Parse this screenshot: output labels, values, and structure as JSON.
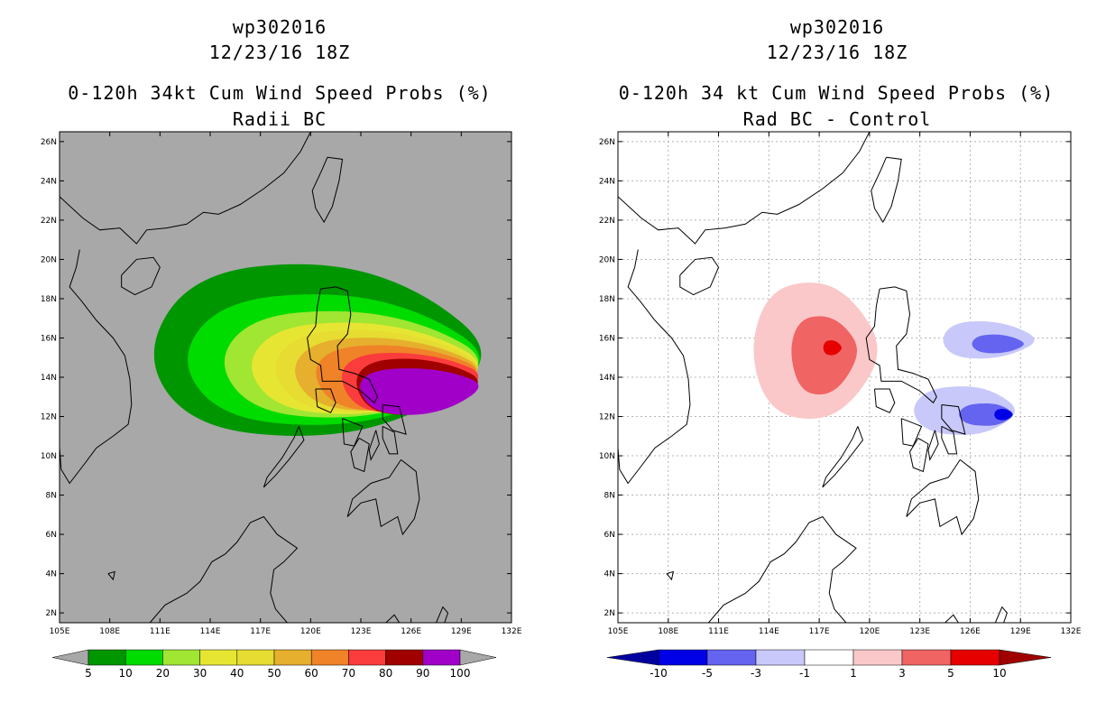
{
  "chart_data": [
    {
      "type": "heatmap",
      "storm_id": "wp302016",
      "date": "12/23/16 18Z",
      "title": "0-120h 34kt Cum Wind Speed Probs (%)",
      "subtitle": "Radii BC",
      "background_color": "#a8a8a8",
      "x_ticks": [
        "105E",
        "108E",
        "111E",
        "114E",
        "117E",
        "120E",
        "123E",
        "126E",
        "129E",
        "132E"
      ],
      "y_ticks": [
        "2N",
        "4N",
        "6N",
        "8N",
        "10N",
        "12N",
        "14N",
        "16N",
        "18N",
        "20N",
        "22N",
        "24N",
        "26N"
      ],
      "xlim": [
        105,
        132
      ],
      "ylim": [
        1.5,
        26.5
      ],
      "legend_levels": [
        "5",
        "10",
        "20",
        "30",
        "40",
        "50",
        "60",
        "70",
        "80",
        "90",
        "100"
      ],
      "legend_colors": [
        "#009600",
        "#00dc00",
        "#a0e632",
        "#e6e632",
        "#e6dc32",
        "#e6af2d",
        "#f08228",
        "#fa3c3c",
        "#a00000",
        "#a000c8"
      ],
      "contours": [
        {
          "level": 5,
          "color": "#009600",
          "center_lon": 120.6,
          "center_lat": 15.1,
          "lon_west": 109.9,
          "lon_east": 131.4,
          "lat_south": 10.8,
          "lat_north": 20.0
        },
        {
          "level": 10,
          "color": "#00dc00",
          "center_lon": 121.4,
          "center_lat": 14.9,
          "lon_west": 112.0,
          "lon_east": 131.2,
          "lat_south": 11.4,
          "lat_north": 18.4
        },
        {
          "level": 20,
          "color": "#a0e632",
          "center_lon": 122.2,
          "center_lat": 14.8,
          "lon_west": 114.3,
          "lon_east": 131.0,
          "lat_south": 11.8,
          "lat_north": 17.5
        },
        {
          "level": 30,
          "color": "#e6e632",
          "center_lon": 122.9,
          "center_lat": 14.6,
          "lon_west": 116.0,
          "lon_east": 130.9,
          "lat_south": 12.0,
          "lat_north": 16.9
        },
        {
          "level": 40,
          "color": "#e6dc32",
          "center_lon": 123.5,
          "center_lat": 14.5,
          "lon_west": 117.5,
          "lon_east": 130.8,
          "lat_south": 12.1,
          "lat_north": 16.5
        },
        {
          "level": 50,
          "color": "#e6af2d",
          "center_lon": 124.0,
          "center_lat": 14.4,
          "lon_west": 118.7,
          "lon_east": 130.7,
          "lat_south": 12.2,
          "lat_north": 16.1
        },
        {
          "level": 60,
          "color": "#f08228",
          "center_lon": 124.6,
          "center_lat": 14.3,
          "lon_west": 120.0,
          "lon_east": 130.6,
          "lat_south": 12.2,
          "lat_north": 15.7
        },
        {
          "level": 70,
          "color": "#fa3c3c",
          "center_lon": 125.4,
          "center_lat": 14.1,
          "lon_west": 121.6,
          "lon_east": 130.6,
          "lat_south": 12.1,
          "lat_north": 15.3
        },
        {
          "level": 80,
          "color": "#a00000",
          "center_lon": 126.0,
          "center_lat": 13.8,
          "lon_west": 122.5,
          "lon_east": 130.5,
          "lat_south": 12.0,
          "lat_north": 15.0
        },
        {
          "level": 90,
          "color": "#a000c8",
          "center_lon": 126.3,
          "center_lat": 13.6,
          "lon_west": 122.7,
          "lon_east": 130.5,
          "lat_south": 12.0,
          "lat_north": 14.5
        }
      ]
    },
    {
      "type": "heatmap",
      "storm_id": "wp302016",
      "date": "12/23/16 18Z",
      "title": "0-120h 34 kt Cum Wind Speed Probs (%)",
      "subtitle": "Rad BC - Control",
      "background_color": "#ffffff",
      "x_ticks": [
        "105E",
        "108E",
        "111E",
        "114E",
        "117E",
        "120E",
        "123E",
        "126E",
        "129E",
        "132E"
      ],
      "y_ticks": [
        "2N",
        "4N",
        "6N",
        "8N",
        "10N",
        "12N",
        "14N",
        "16N",
        "18N",
        "20N",
        "22N",
        "24N",
        "26N"
      ],
      "xlim": [
        105,
        132
      ],
      "ylim": [
        1.5,
        26.5
      ],
      "legend_levels": [
        "-10",
        "-5",
        "-3",
        "-1",
        "1",
        "3",
        "5",
        "10"
      ],
      "legend_colors": [
        "#0000a0",
        "#0000e6",
        "#6464f0",
        "#c8c8fa",
        "#ffffff",
        "#fac8c8",
        "#f06464",
        "#e60000",
        "#a00000"
      ],
      "contours": [
        {
          "level": 1,
          "color": "#fac8c8",
          "center_lon": 117.0,
          "center_lat": 15.4,
          "lon_west": 112.8,
          "lon_east": 120.9,
          "lat_south": 11.7,
          "lat_north": 19.0
        },
        {
          "level": 3,
          "color": "#f06464",
          "center_lon": 117.3,
          "center_lat": 15.4,
          "lon_west": 115.2,
          "lon_east": 119.5,
          "lat_south": 13.0,
          "lat_north": 17.2
        },
        {
          "level": 5,
          "color": "#e60000",
          "center_lon": 117.8,
          "center_lat": 15.5,
          "lon_west": 117.2,
          "lon_east": 118.4,
          "lat_south": 15.1,
          "lat_north": 15.9
        },
        {
          "level": -1,
          "color": "#c8c8fa",
          "center_lon": 126.9,
          "center_lat": 15.9,
          "lon_west": 124.2,
          "lon_east": 130.2,
          "lat_south": 14.9,
          "lat_north": 16.9
        },
        {
          "level": -3,
          "color": "#6464f0",
          "center_lon": 127.6,
          "center_lat": 15.7,
          "lon_west": 126.0,
          "lon_east": 129.4,
          "lat_south": 15.2,
          "lat_north": 16.2
        },
        {
          "level": -1,
          "color": "#c8c8fa",
          "center_lon": 126.0,
          "center_lat": 12.3,
          "lon_west": 122.4,
          "lon_east": 129.0,
          "lat_south": 11.0,
          "lat_north": 13.6
        },
        {
          "level": -3,
          "color": "#6464f0",
          "center_lon": 127.2,
          "center_lat": 12.1,
          "lon_west": 125.2,
          "lon_east": 128.7,
          "lat_south": 11.5,
          "lat_north": 12.7
        },
        {
          "level": -5,
          "color": "#0000e6",
          "center_lon": 128.0,
          "center_lat": 12.1,
          "lon_west": 127.4,
          "lon_east": 128.6,
          "lat_south": 11.8,
          "lat_north": 12.4
        }
      ]
    }
  ]
}
